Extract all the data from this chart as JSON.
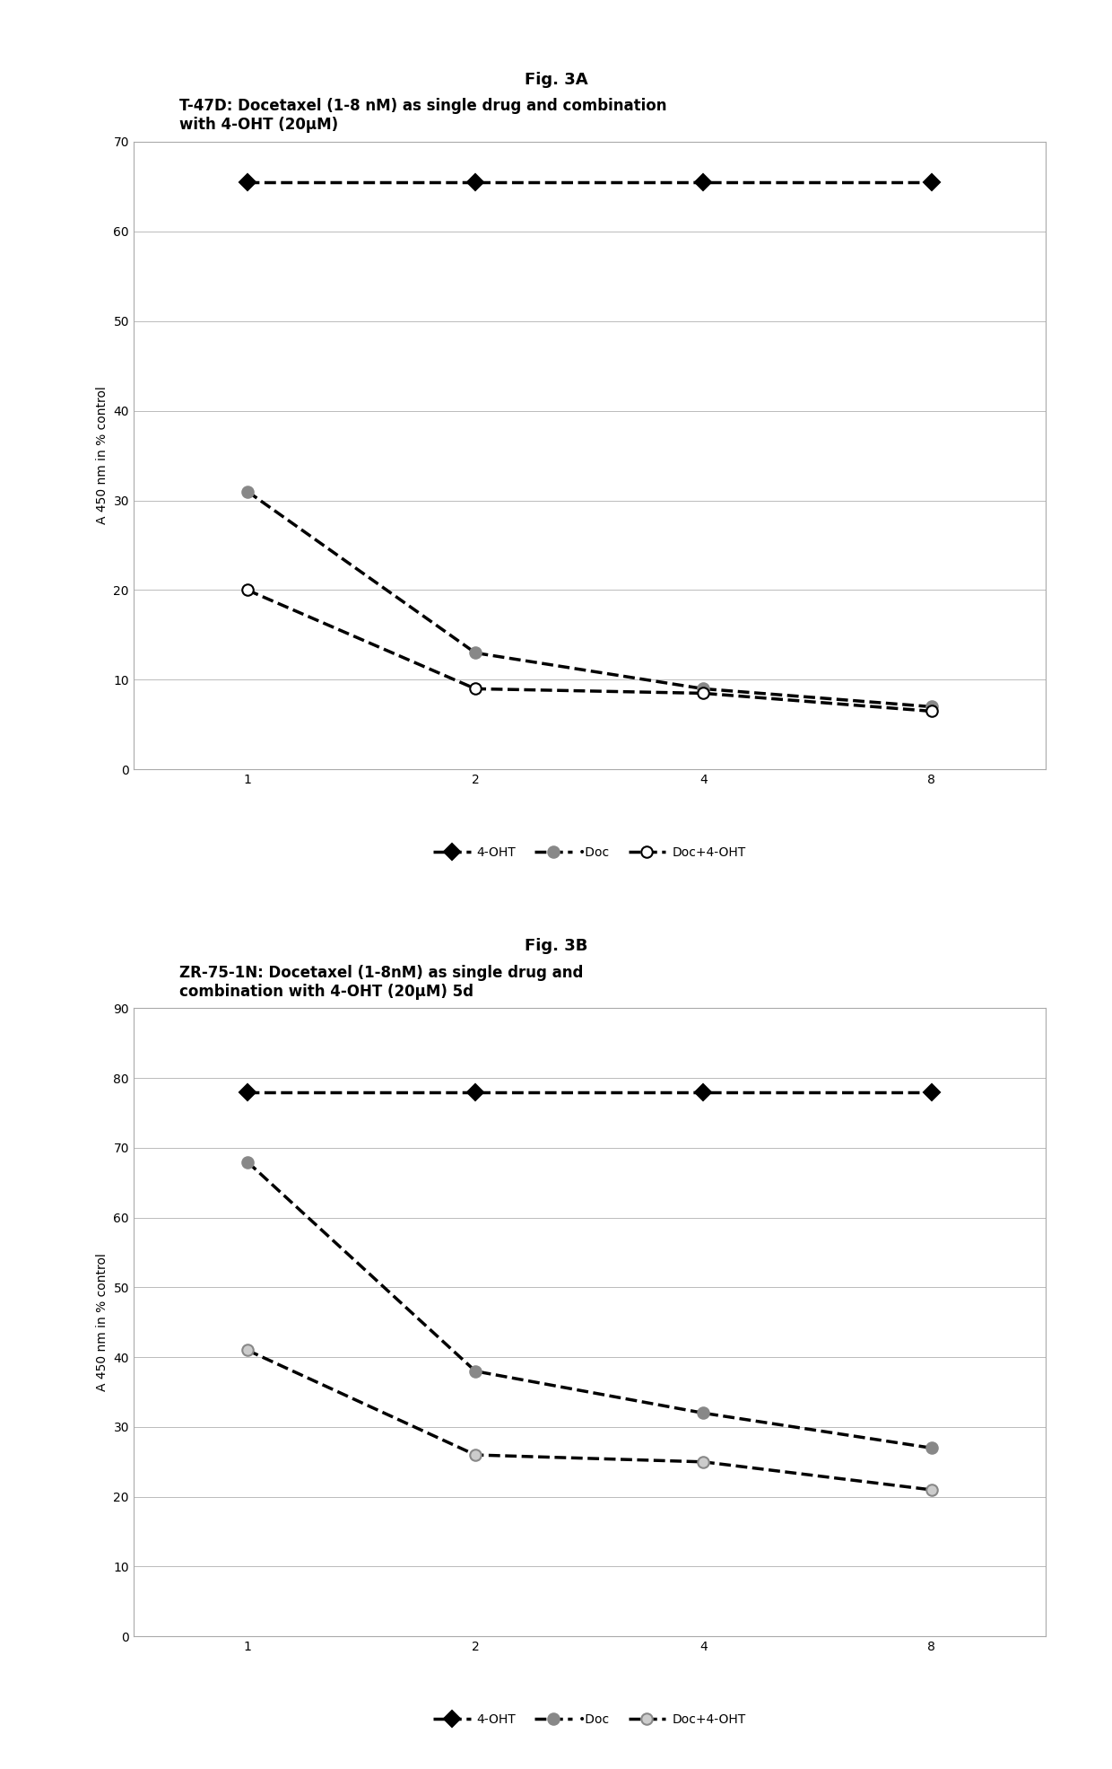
{
  "fig3a": {
    "title": "T-47D: Docetaxel (1-8 nM) as single drug and combination\nwith 4-OHT (20μM)",
    "xlabel": "",
    "ylabel": "A 450 nm in % control",
    "xtick_labels": [
      "1",
      "2",
      "4",
      "8"
    ],
    "ylim": [
      0,
      70
    ],
    "yticks": [
      0,
      10,
      20,
      30,
      40,
      50,
      60,
      70
    ],
    "series": {
      "4-OHT": {
        "x": [
          0,
          1,
          2,
          3
        ],
        "y": [
          65.5,
          65.5,
          65.5,
          65.5
        ],
        "color": "#000000",
        "linestyle": "--",
        "linewidth": 2.5,
        "marker": "D",
        "markersize": 9,
        "markerfacecolor": "#000000",
        "markeredgecolor": "#000000"
      },
      "Doc": {
        "x": [
          0,
          1,
          2,
          3
        ],
        "y": [
          31.0,
          13.0,
          9.0,
          7.0
        ],
        "color": "#000000",
        "linestyle": "--",
        "linewidth": 2.5,
        "marker": "o",
        "markersize": 9,
        "markerfacecolor": "#888888",
        "markeredgecolor": "#888888"
      },
      "Doc+4-OHT": {
        "x": [
          0,
          1,
          2,
          3
        ],
        "y": [
          20.0,
          9.0,
          8.5,
          6.5
        ],
        "color": "#000000",
        "linestyle": "--",
        "linewidth": 2.5,
        "marker": "o",
        "markersize": 9,
        "markerfacecolor": "#ffffff",
        "markeredgecolor": "#000000"
      }
    },
    "legend_labels": [
      "4-OHT",
      "•Doc",
      "Doc+4-OHT"
    ],
    "fig_label": "Fig. 3A"
  },
  "fig3b": {
    "title": "ZR-75-1N: Docetaxel (1-8nM) as single drug and\ncombination with 4-OHT (20μM) 5d",
    "xlabel": "",
    "ylabel": "A 450 nm in % control",
    "xtick_labels": [
      "1",
      "2",
      "4",
      "8"
    ],
    "ylim": [
      0,
      90
    ],
    "yticks": [
      0,
      10,
      20,
      30,
      40,
      50,
      60,
      70,
      80,
      90
    ],
    "series": {
      "4-OHT": {
        "x": [
          0,
          1,
          2,
          3
        ],
        "y": [
          78.0,
          78.0,
          78.0,
          78.0
        ],
        "color": "#000000",
        "linestyle": "--",
        "linewidth": 2.5,
        "marker": "D",
        "markersize": 9,
        "markerfacecolor": "#000000",
        "markeredgecolor": "#000000"
      },
      "Doc": {
        "x": [
          0,
          1,
          2,
          3
        ],
        "y": [
          68.0,
          38.0,
          32.0,
          27.0
        ],
        "color": "#000000",
        "linestyle": "--",
        "linewidth": 2.5,
        "marker": "o",
        "markersize": 9,
        "markerfacecolor": "#888888",
        "markeredgecolor": "#888888"
      },
      "Doc+4-OHT": {
        "x": [
          0,
          1,
          2,
          3
        ],
        "y": [
          41.0,
          26.0,
          25.0,
          21.0
        ],
        "color": "#000000",
        "linestyle": "--",
        "linewidth": 2.5,
        "marker": "o",
        "markersize": 9,
        "markerfacecolor": "#cccccc",
        "markeredgecolor": "#888888"
      }
    },
    "legend_labels": [
      "4-OHT",
      "•Doc",
      "Doc+4-OHT"
    ],
    "fig_label": "Fig. 3B"
  },
  "background_color": "#ffffff",
  "grid_color": "#bbbbbb",
  "font_color": "#000000",
  "title_fontsize": 12,
  "label_fontsize": 10,
  "tick_fontsize": 10,
  "legend_fontsize": 10,
  "fig_label_fontsize": 13
}
